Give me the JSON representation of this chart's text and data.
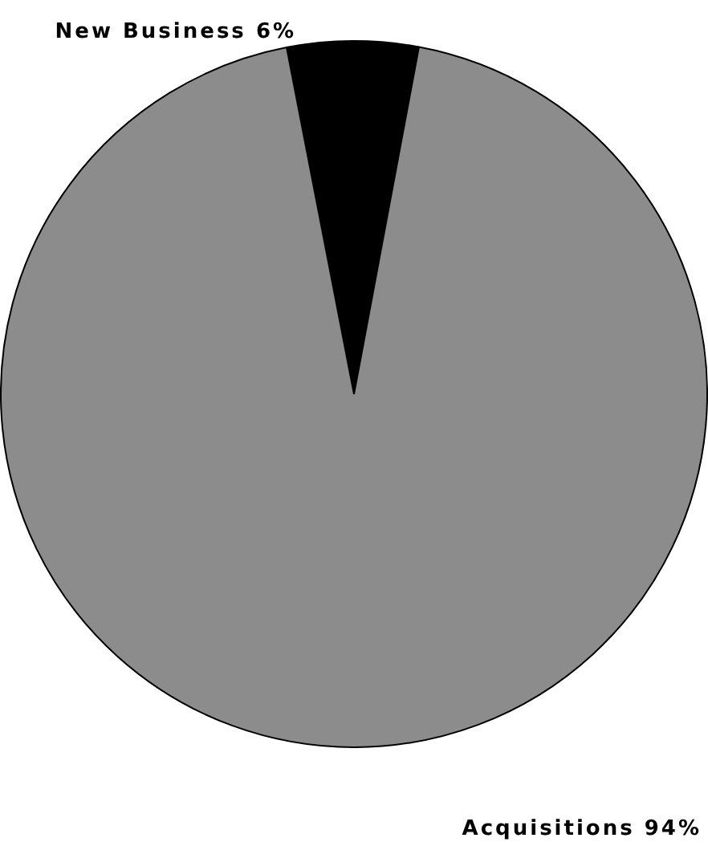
{
  "chart_data": {
    "type": "pie",
    "categories": [
      "New Business",
      "Acquisitions"
    ],
    "values": [
      6,
      94
    ],
    "value_labels": [
      "6%",
      "94%"
    ],
    "colors": [
      "#000000",
      "#8c8c8c"
    ],
    "legend": false
  }
}
